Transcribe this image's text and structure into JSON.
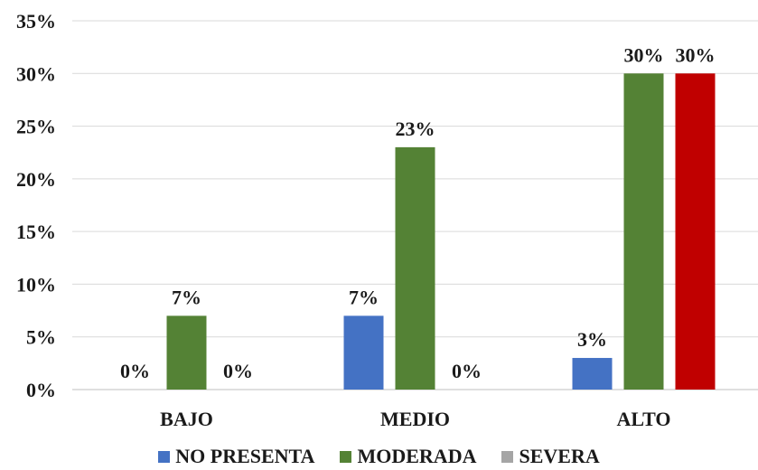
{
  "chart_data": {
    "type": "bar",
    "categories": [
      "BAJO",
      "MEDIO",
      "ALTO"
    ],
    "series": [
      {
        "name": "NO PRESENTA",
        "color": "#4472C4",
        "values": [
          0,
          7,
          3
        ],
        "labels": [
          "0%",
          "7%",
          "3%"
        ]
      },
      {
        "name": "MODERADA",
        "color": "#548235",
        "values": [
          7,
          23,
          30
        ],
        "labels": [
          "7%",
          "23%",
          "30%"
        ]
      },
      {
        "name": "SEVERA",
        "color": "#C00000",
        "legend_color": "#A5A5A5",
        "values": [
          0,
          0,
          30
        ],
        "labels": [
          "0%",
          "0%",
          "30%"
        ]
      }
    ],
    "y_ticks": [
      "0%",
      "5%",
      "10%",
      "15%",
      "20%",
      "25%",
      "30%",
      "35%"
    ],
    "ylim": [
      0,
      35
    ],
    "grid": true,
    "legend": "bottom"
  }
}
